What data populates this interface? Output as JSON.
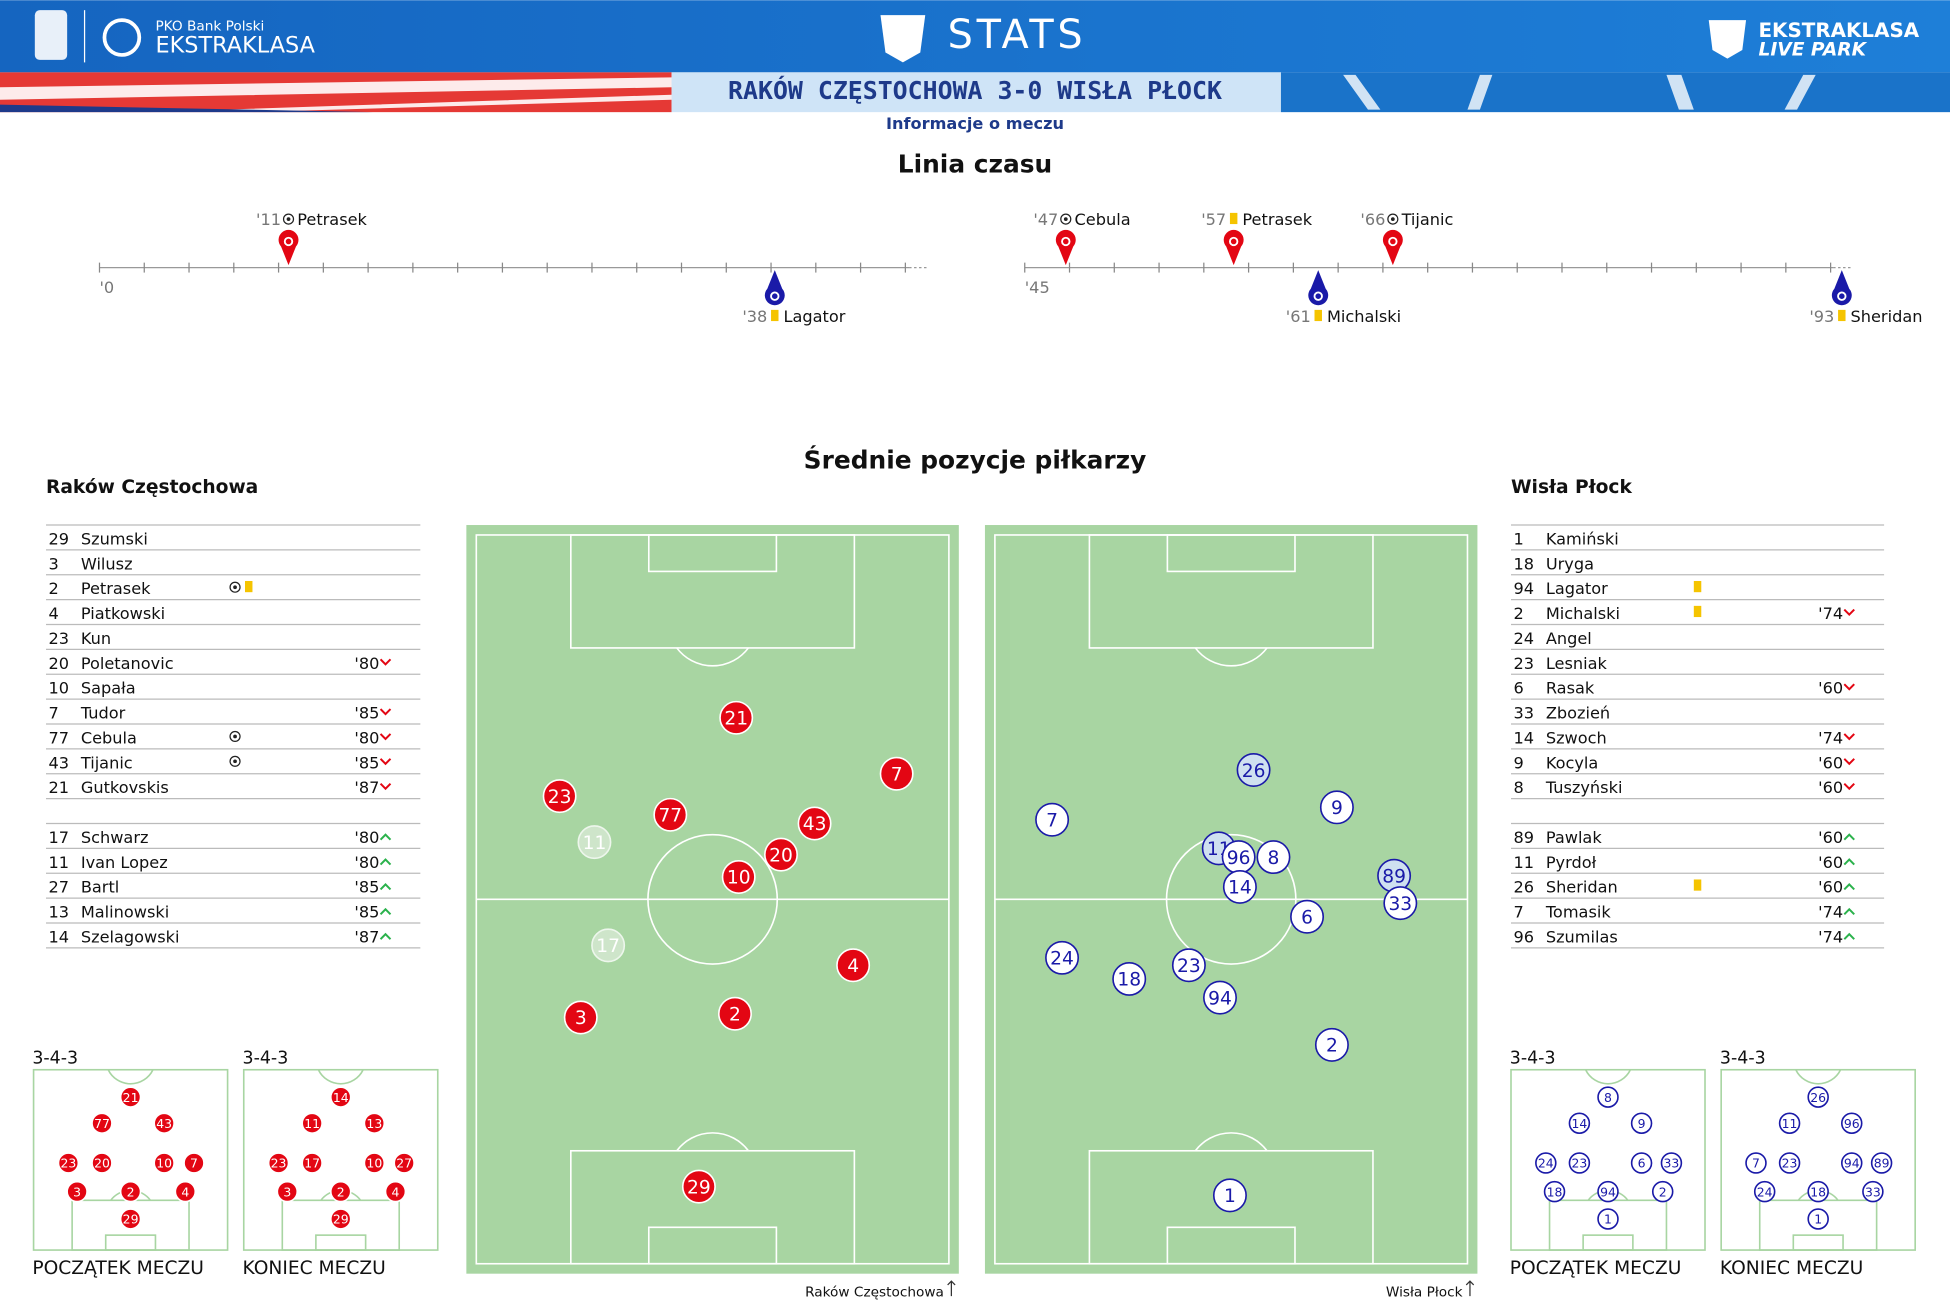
{
  "header": {
    "brand_small": "PKO Bank Polski",
    "brand": "EKSTRAKLASA",
    "section": "STATS",
    "right_top": "EKSTRAKLASA",
    "right_bottom": "LIVE PARK",
    "match": "RAKÓW CZĘSTOCHOWA 3-0 WISŁA PŁOCK",
    "subtitle": "Informacje o meczu"
  },
  "timeline": {
    "title": "Linia czasu",
    "halves": [
      {
        "start": "'0",
        "events": [
          {
            "minute": "'11",
            "player": "Petrasek",
            "icon": "goal",
            "team": "home"
          },
          {
            "minute": "'38",
            "player": "Lagator",
            "icon": "yellow",
            "team": "away"
          }
        ]
      },
      {
        "start": "'45",
        "events": [
          {
            "minute": "'47",
            "player": "Cebula",
            "icon": "goal",
            "team": "home"
          },
          {
            "minute": "'57",
            "player": "Petrasek",
            "icon": "yellow",
            "team": "home"
          },
          {
            "minute": "'66",
            "player": "Tijanic",
            "icon": "goal",
            "team": "home"
          },
          {
            "minute": "'61",
            "player": "Michalski",
            "icon": "yellow",
            "team": "away"
          },
          {
            "minute": "'93",
            "player": "Sheridan",
            "icon": "yellow",
            "team": "away"
          }
        ]
      }
    ]
  },
  "positions_title": "Średnie pozycje piłkarzy",
  "teams": [
    {
      "name": "Raków Częstochowa",
      "starters": [
        {
          "number": 29,
          "name": "Szumski"
        },
        {
          "number": 3,
          "name": "Wilusz"
        },
        {
          "number": 2,
          "name": "Petrasek",
          "icons": [
            "goal",
            "yellow"
          ]
        },
        {
          "number": 4,
          "name": "Piatkowski"
        },
        {
          "number": 23,
          "name": "Kun"
        },
        {
          "number": 20,
          "name": "Poletanovic",
          "sub": "'80",
          "dir": "out"
        },
        {
          "number": 10,
          "name": "Sapała"
        },
        {
          "number": 7,
          "name": "Tudor",
          "sub": "'85",
          "dir": "out"
        },
        {
          "number": 77,
          "name": "Cebula",
          "icons": [
            "goal"
          ],
          "sub": "'80",
          "dir": "out"
        },
        {
          "number": 43,
          "name": "Tijanic",
          "icons": [
            "goal"
          ],
          "sub": "'85",
          "dir": "out"
        },
        {
          "number": 21,
          "name": "Gutkovskis",
          "sub": "'87",
          "dir": "out"
        }
      ],
      "substitutes": [
        {
          "number": 17,
          "name": "Schwarz",
          "sub": "'80",
          "dir": "in"
        },
        {
          "number": 11,
          "name": "Ivan Lopez",
          "sub": "'80",
          "dir": "in"
        },
        {
          "number": 27,
          "name": "Bartl",
          "sub": "'85",
          "dir": "in"
        },
        {
          "number": 13,
          "name": "Malinowski",
          "sub": "'85",
          "dir": "in"
        },
        {
          "number": 14,
          "name": "Szelagowski",
          "sub": "'87",
          "dir": "in"
        }
      ]
    },
    {
      "name": "Wisła Płock",
      "starters": [
        {
          "number": 1,
          "name": "Kamiński"
        },
        {
          "number": 18,
          "name": "Uryga"
        },
        {
          "number": 94,
          "name": "Lagator",
          "icons": [
            "yellow"
          ]
        },
        {
          "number": 2,
          "name": "Michalski",
          "icons": [
            "yellow"
          ],
          "sub": "'74",
          "dir": "out"
        },
        {
          "number": 24,
          "name": "Angel"
        },
        {
          "number": 23,
          "name": "Lesniak"
        },
        {
          "number": 6,
          "name": "Rasak",
          "sub": "'60",
          "dir": "out"
        },
        {
          "number": 33,
          "name": "Zbozień"
        },
        {
          "number": 14,
          "name": "Szwoch",
          "sub": "'74",
          "dir": "out"
        },
        {
          "number": 9,
          "name": "Kocyla",
          "sub": "'60",
          "dir": "out"
        },
        {
          "number": 8,
          "name": "Tuszyński",
          "sub": "'60",
          "dir": "out"
        }
      ],
      "substitutes": [
        {
          "number": 89,
          "name": "Pawlak",
          "sub": "'60",
          "dir": "in"
        },
        {
          "number": 11,
          "name": "Pyrdoł",
          "sub": "'60",
          "dir": "in"
        },
        {
          "number": 26,
          "name": "Sheridan",
          "icons": [
            "yellow"
          ],
          "sub": "'60",
          "dir": "in"
        },
        {
          "number": 7,
          "name": "Tomasik",
          "sub": "'74",
          "dir": "in"
        },
        {
          "number": 96,
          "name": "Szumilas",
          "sub": "'74",
          "dir": "in"
        }
      ]
    }
  ],
  "pitches": [
    {
      "caption": "Raków Częstochowa",
      "color": "#e30613",
      "players": [
        21,
        7,
        23,
        77,
        43,
        11,
        20,
        10,
        17,
        4,
        3,
        2,
        29
      ]
    },
    {
      "caption": "Wisła Płock",
      "color": "#1a1aa8",
      "players": [
        26,
        7,
        9,
        11,
        96,
        8,
        89,
        33,
        14,
        6,
        24,
        23,
        18,
        94,
        2,
        1
      ]
    }
  ],
  "formations": [
    {
      "formation": "3-4-3",
      "label": "POCZĄTEK MECZU",
      "team": 0,
      "players": [
        21,
        77,
        43,
        23,
        20,
        10,
        7,
        3,
        2,
        4,
        29
      ]
    },
    {
      "formation": "3-4-3",
      "label": "KONIEC MECZU",
      "team": 0,
      "players": [
        14,
        11,
        13,
        23,
        17,
        10,
        27,
        3,
        2,
        4,
        29
      ]
    },
    {
      "formation": "3-4-3",
      "label": "POCZĄTEK MECZU",
      "team": 1,
      "players": [
        8,
        14,
        9,
        24,
        23,
        6,
        33,
        18,
        94,
        2,
        1
      ]
    },
    {
      "formation": "3-4-3",
      "label": "KONIEC MECZU",
      "team": 1,
      "players": [
        26,
        11,
        96,
        7,
        23,
        94,
        89,
        24,
        18,
        33,
        1
      ]
    }
  ]
}
